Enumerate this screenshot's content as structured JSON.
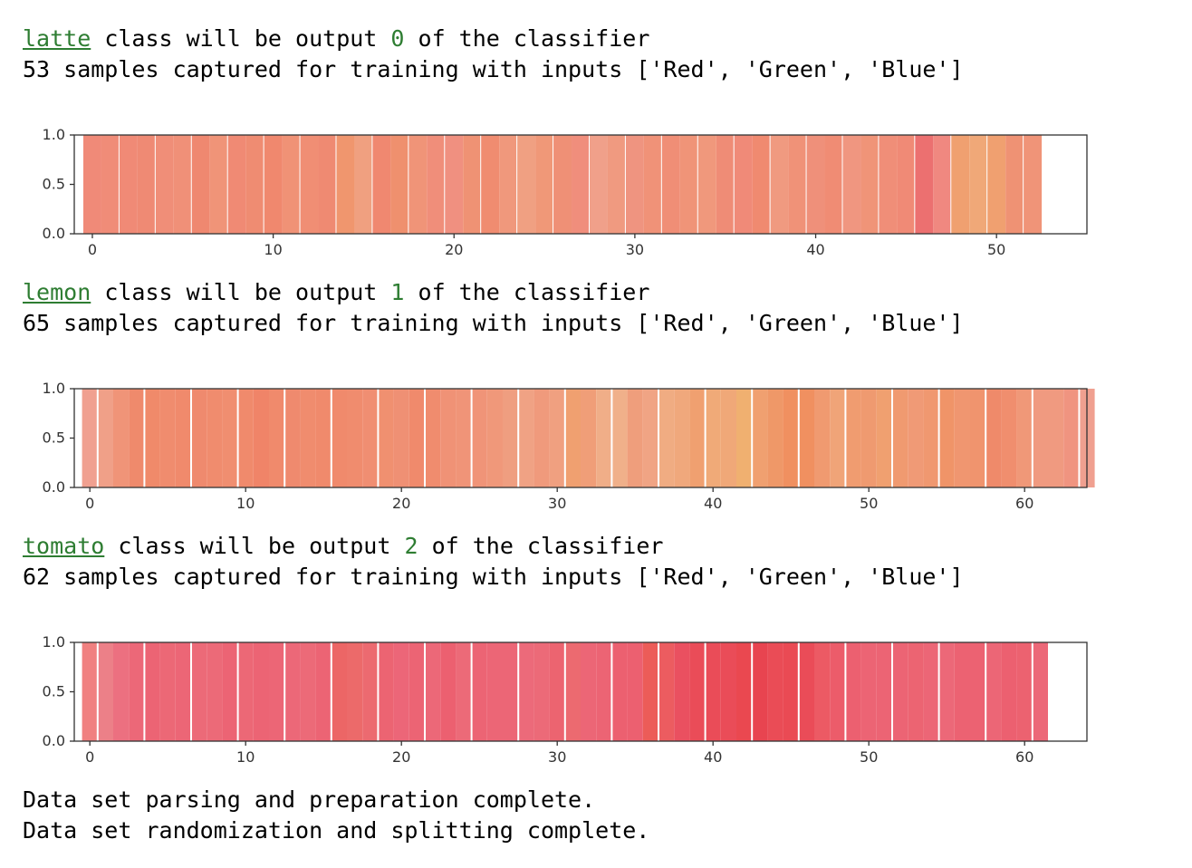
{
  "text_prefix_class": " class will be output ",
  "text_suffix_class": " of the classifier",
  "colors": {
    "latte_base": "#f08a70",
    "lemon_base": "#f0a070",
    "tomato_base": "#ec6070"
  },
  "sections": [
    {
      "class_name": "latte",
      "output_index": "0",
      "samples_line": "53 samples captured for training with inputs ['Red', 'Green', 'Blue']"
    },
    {
      "class_name": "lemon",
      "output_index": "1",
      "samples_line": "65 samples captured for training with inputs ['Red', 'Green', 'Blue']"
    },
    {
      "class_name": "tomato",
      "output_index": "2",
      "samples_line": "62 samples captured for training with inputs ['Red', 'Green', 'Blue']"
    }
  ],
  "footer": {
    "line1": "Data set parsing and preparation complete.",
    "line2": "Data set randomization and splitting complete."
  },
  "chart_data": [
    {
      "type": "bar",
      "n": 53,
      "xlim": [
        -1,
        55
      ],
      "ylim": [
        0,
        1
      ],
      "xticks": [
        "0",
        "10",
        "20",
        "30",
        "40",
        "50"
      ],
      "yticks": [
        "0.0",
        "0.5",
        "1.0"
      ],
      "values_all": 1.0,
      "colors": [
        "#f08a78",
        "#f08c78",
        "#f08a76",
        "#ef8a74",
        "#f08e78",
        "#f09078",
        "#ef8870",
        "#f09478",
        "#f08a74",
        "#ef8c72",
        "#f0886e",
        "#f09276",
        "#f08e74",
        "#ef8a72",
        "#f0966e",
        "#f0a080",
        "#f08870",
        "#ef906e",
        "#f09478",
        "#f08e7a",
        "#f09080",
        "#ef9274",
        "#f08c70",
        "#f0987c",
        "#f0a082",
        "#f09878",
        "#ef9076",
        "#f08e7c",
        "#f0a08a",
        "#f09a80",
        "#ef9480",
        "#f09278",
        "#f08e76",
        "#f09478",
        "#f0987c",
        "#ef8c76",
        "#f08a78",
        "#f08a70",
        "#f09a80",
        "#f09278",
        "#ef907a",
        "#f08c74",
        "#f09680",
        "#f09478",
        "#f08e78",
        "#f08a76",
        "#ec7070",
        "#f08880",
        "#f0a070",
        "#f0a878",
        "#f0a070",
        "#ef9274",
        "#f09478"
      ]
    },
    {
      "type": "bar",
      "n": 65,
      "xlim": [
        -1,
        64
      ],
      "ylim": [
        0,
        1
      ],
      "xticks": [
        "0",
        "10",
        "20",
        "30",
        "40",
        "50",
        "60"
      ],
      "yticks": [
        "0.0",
        "0.5",
        "1.0"
      ],
      "values_all": 1.0,
      "colors": [
        "#f0a090",
        "#f0a088",
        "#f09478",
        "#ef8a6c",
        "#f08a6a",
        "#f08c6e",
        "#f08a6c",
        "#ef8a6e",
        "#f08c6e",
        "#f08e70",
        "#f08a6c",
        "#f08468",
        "#f08a6c",
        "#ef8a6e",
        "#f08c6e",
        "#f08a6c",
        "#f08a6c",
        "#f08c6e",
        "#f08e72",
        "#f09070",
        "#ef9074",
        "#f08a6c",
        "#f08c6e",
        "#f09276",
        "#f09478",
        "#f09478",
        "#f0987a",
        "#ef9e80",
        "#f0a284",
        "#f09a7c",
        "#f0a080",
        "#f0a070",
        "#f09e78",
        "#f0ae88",
        "#f0b08a",
        "#ef9e7c",
        "#f0a484",
        "#f0ac82",
        "#f0a87c",
        "#f0a070",
        "#f0aa78",
        "#f0a878",
        "#f0b070",
        "#f0a070",
        "#ef9868",
        "#f09060",
        "#f09060",
        "#f09a70",
        "#f0a478",
        "#f09c70",
        "#ef9a70",
        "#f0a070",
        "#f09a70",
        "#f09a76",
        "#f09870",
        "#f09468",
        "#f09670",
        "#f0946e",
        "#ef8a6a",
        "#f08e6e",
        "#f09878",
        "#f09a80",
        "#f09a80",
        "#f09480",
        "#f0a090"
      ]
    },
    {
      "type": "bar",
      "n": 62,
      "xlim": [
        -1,
        64
      ],
      "ylim": [
        0,
        1
      ],
      "xticks": [
        "0",
        "10",
        "20",
        "30",
        "40",
        "50",
        "60"
      ],
      "yticks": [
        "0.0",
        "0.5",
        "1.0"
      ],
      "values_all": 1.0,
      "colors": [
        "#f08080",
        "#ec8088",
        "#ec7080",
        "#ec6878",
        "#ec6474",
        "#ec6876",
        "#ec6676",
        "#ec6a78",
        "#ec6a78",
        "#ec6474",
        "#ec6876",
        "#ec6474",
        "#ec6676",
        "#ec6878",
        "#ec6a78",
        "#ec6474",
        "#ec6666",
        "#ec6a6a",
        "#ec6a70",
        "#ec6472",
        "#ec6678",
        "#ec6474",
        "#ec6878",
        "#ec6070",
        "#ec6a78",
        "#ec6474",
        "#ec6676",
        "#ec6676",
        "#ec6a7a",
        "#ec6a78",
        "#ec6470",
        "#ec6a70",
        "#ec6676",
        "#ec6474",
        "#ec6070",
        "#ec6070",
        "#ec5c58",
        "#ec5c60",
        "#ea5060",
        "#ea4c58",
        "#ea4c58",
        "#ea4c58",
        "#ea4850",
        "#e84450",
        "#ea4c56",
        "#ea4a54",
        "#ea4c58",
        "#ec5a64",
        "#ec5c6a",
        "#ec6070",
        "#ec6474",
        "#ec6474",
        "#ec6474",
        "#ec6472",
        "#ec6676",
        "#ec6878",
        "#ec6272",
        "#ec6272",
        "#ec6676",
        "#ec6070",
        "#ec6270",
        "#ec6878"
      ]
    }
  ]
}
